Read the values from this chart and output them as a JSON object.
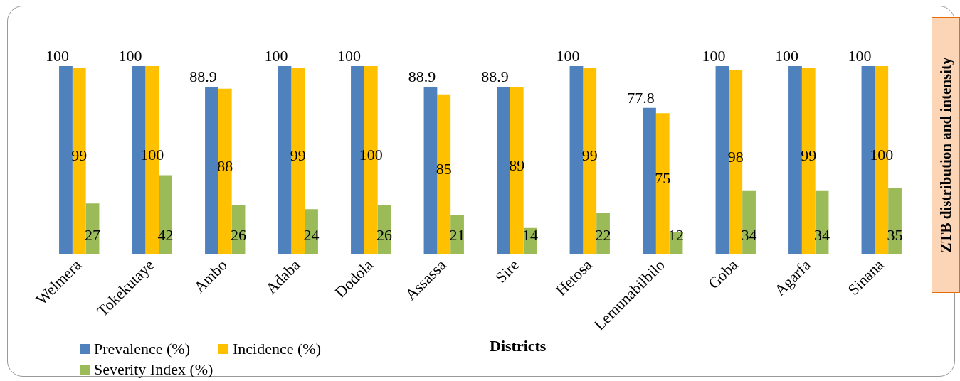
{
  "chart_data": {
    "type": "bar",
    "xlabel": "Districts",
    "ylabel": "ZTB distribution and intensity",
    "categories": [
      "Welmera",
      "Tokekutaye",
      "Ambo",
      "Adaba",
      "Dodola",
      "Assassa",
      "Sire",
      "Hetosa",
      "Lemunabilbilo",
      "Goba",
      "Agarfa",
      "Sinana"
    ],
    "series": [
      {
        "name": "Prevalence (%)",
        "color": "#4f81bd",
        "values": [
          100,
          100,
          88.9,
          100,
          100,
          88.9,
          88.9,
          100,
          77.8,
          100,
          100,
          100
        ]
      },
      {
        "name": "Incidence (%)",
        "color": "#ffc000",
        "values": [
          99,
          100,
          88,
          99,
          100,
          85,
          89,
          99,
          75,
          98,
          99,
          100
        ]
      },
      {
        "name": "Severity Index (%)",
        "color": "#9bbb59",
        "values": [
          27,
          42,
          26,
          24,
          26,
          21,
          14,
          22,
          12,
          34,
          34,
          35
        ]
      }
    ],
    "data_labels": true,
    "legend": "bottom left",
    "grid": false
  }
}
